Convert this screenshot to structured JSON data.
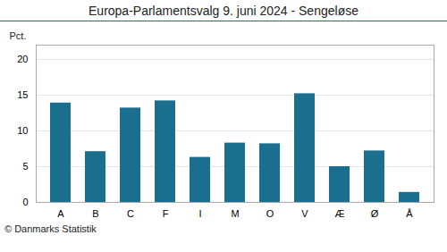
{
  "chart_data": {
    "type": "bar",
    "title": "Europa-Parlamentsvalg 9. juni 2024 - Sengeløse",
    "caption": "© Danmarks Statistik",
    "ylabel": "Pct.",
    "categories": [
      "A",
      "B",
      "C",
      "F",
      "I",
      "M",
      "O",
      "V",
      "Æ",
      "Ø",
      "Å"
    ],
    "values": [
      13.9,
      7.1,
      13.2,
      14.2,
      6.3,
      8.3,
      8.2,
      15.2,
      5.0,
      7.2,
      1.4
    ],
    "color": "#1a6e8e",
    "ylim": [
      0,
      22
    ],
    "yticks": [
      0,
      5,
      10,
      15,
      20
    ],
    "grid": true
  }
}
